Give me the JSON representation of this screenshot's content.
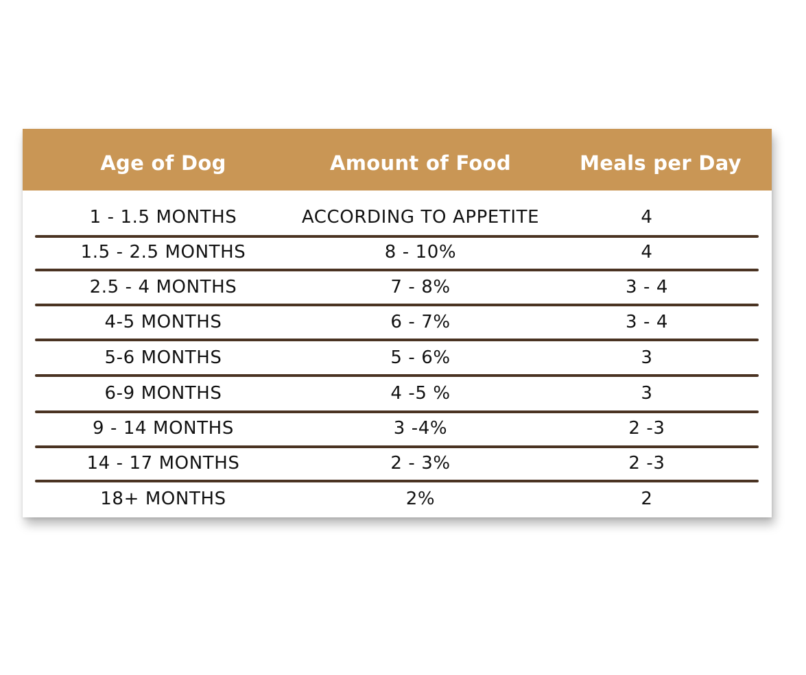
{
  "table": {
    "columns": [
      "Age of Dog",
      "Amount of Food",
      "Meals per Day"
    ],
    "rows": [
      {
        "age": "1 - 1.5 MONTHS",
        "amount": "ACCORDING TO APPETITE",
        "meals": "4"
      },
      {
        "age": "1.5 - 2.5 MONTHS",
        "amount": "8 - 10%",
        "meals": "4"
      },
      {
        "age": "2.5 - 4 MONTHS",
        "amount": "7 - 8%",
        "meals": "3 - 4"
      },
      {
        "age": "4-5 MONTHS",
        "amount": "6 - 7%",
        "meals": "3 - 4"
      },
      {
        "age": "5-6 MONTHS",
        "amount": "5 - 6%",
        "meals": "3"
      },
      {
        "age": "6-9 MONTHS",
        "amount": "4 -5 %",
        "meals": "3"
      },
      {
        "age": "9 - 14 MONTHS",
        "amount": "3 -4%",
        "meals": "2 -3"
      },
      {
        "age": "14 - 17 MONTHS",
        "amount": "2 - 3%",
        "meals": "2 -3"
      },
      {
        "age": "18+ MONTHS",
        "amount": "2%",
        "meals": "2"
      }
    ]
  },
  "colors": {
    "header_background": "#c99655",
    "header_text": "#ffffff",
    "divider": "#4a3322",
    "body_text": "#111111"
  }
}
